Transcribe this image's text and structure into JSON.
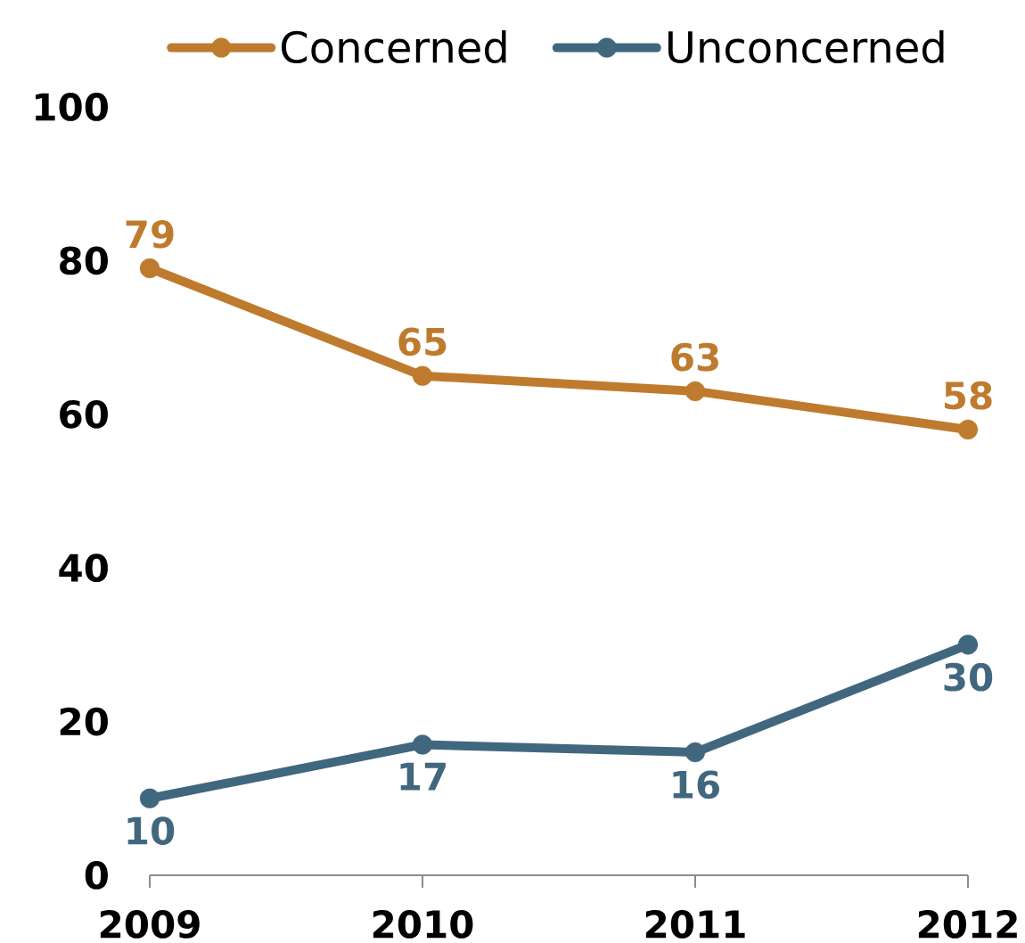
{
  "chart_data": {
    "type": "line",
    "categories": [
      "2009",
      "2010",
      "2011",
      "2012"
    ],
    "series": [
      {
        "name": "Concerned",
        "color": "#BE7B2E",
        "values": [
          79,
          65,
          63,
          58
        ]
      },
      {
        "name": "Unconcerned",
        "color": "#41677F",
        "values": [
          10,
          17,
          16,
          30
        ]
      }
    ],
    "ylim": [
      0,
      100
    ],
    "yticks": [
      0,
      20,
      40,
      60,
      80,
      100
    ],
    "legend": "top",
    "marker": "circle",
    "line_style": "solid",
    "data_labels": true
  }
}
